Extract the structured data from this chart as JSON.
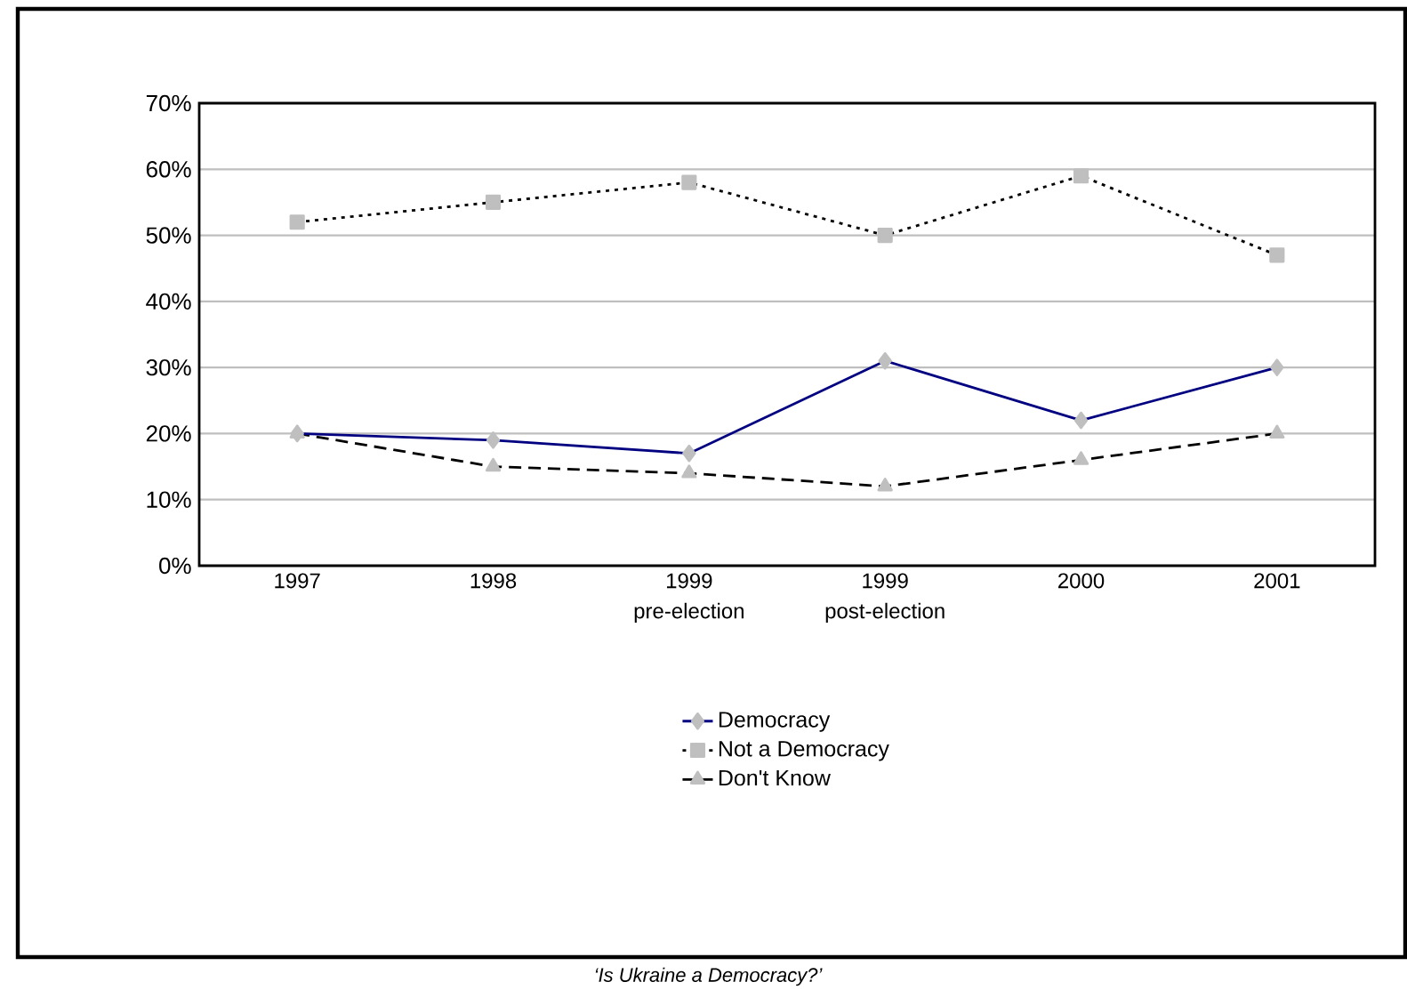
{
  "chart_data": {
    "type": "line",
    "categories": [
      "1997",
      "1998",
      "1999 pre-election",
      "1999 post-election",
      "2000",
      "2001"
    ],
    "series": [
      {
        "name": "Democracy",
        "color": "#000080",
        "values": [
          20,
          19,
          17,
          31,
          22,
          30
        ],
        "marker": "diamond",
        "line_style": "solid"
      },
      {
        "name": "Not a Democracy",
        "color": "#000000",
        "values": [
          52,
          55,
          58,
          50,
          59,
          47
        ],
        "marker": "square",
        "line_style": "dotted"
      },
      {
        "name": "Don't Know",
        "color": "#000000",
        "values": [
          20,
          15,
          14,
          12,
          16,
          20
        ],
        "marker": "triangle",
        "line_style": "dashed"
      }
    ],
    "ylim": [
      0,
      70
    ],
    "yticks": [
      {
        "value": 0,
        "label": "0%"
      },
      {
        "value": 10,
        "label": "10%"
      },
      {
        "value": 20,
        "label": "20%"
      },
      {
        "value": 30,
        "label": "30%"
      },
      {
        "value": 40,
        "label": "40%"
      },
      {
        "value": 50,
        "label": "50%"
      },
      {
        "value": 60,
        "label": "60%"
      },
      {
        "value": 70,
        "label": "70%"
      }
    ],
    "grid": "y",
    "legend": "bottom",
    "annotations": [
      "‘Is Ukraine a Democracy?’"
    ]
  }
}
